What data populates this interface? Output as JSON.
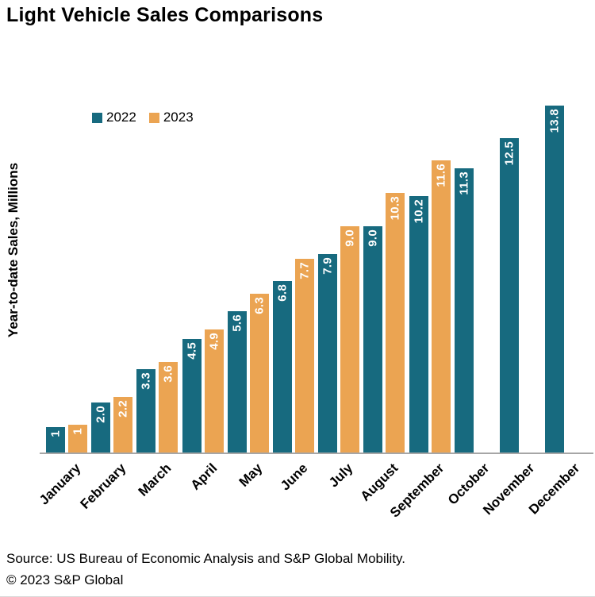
{
  "title": "Light Vehicle Sales Comparisons",
  "ylabel": "Year-to-date Sales, Millions",
  "source": "Source: US Bureau of Economic Analysis and S&P Global Mobility.",
  "copyright": "© 2023 S&P Global",
  "chart_data": {
    "type": "bar",
    "title": "Light Vehicle Sales Comparisons",
    "xlabel": "",
    "ylabel": "Year-to-date Sales, Millions",
    "ylim": [
      0,
      14
    ],
    "grid": false,
    "legend_position": "top-left-inside",
    "categories": [
      "January",
      "February",
      "March",
      "April",
      "May",
      "June",
      "July",
      "August",
      "September",
      "October",
      "November",
      "December"
    ],
    "series": [
      {
        "name": "2022",
        "color": "#176a7f",
        "values": [
          1.0,
          2.0,
          3.3,
          4.5,
          5.6,
          6.8,
          7.9,
          9.0,
          10.2,
          11.3,
          12.5,
          13.8
        ],
        "labels": [
          "1",
          "2.0",
          "3.3",
          "4.5",
          "5.6",
          "6.8",
          "7.9",
          "9.0",
          "10.2",
          "11.3",
          "12.5",
          "13.8"
        ]
      },
      {
        "name": "2023",
        "color": "#eba452",
        "values": [
          1.1,
          2.2,
          3.6,
          4.9,
          6.3,
          7.7,
          9.0,
          10.3,
          11.6,
          null,
          null,
          null
        ],
        "labels": [
          "1",
          "2.2",
          "3.6",
          "4.9",
          "6.3",
          "7.7",
          "9.0",
          "10.3",
          "11.6",
          null,
          null,
          null
        ]
      }
    ]
  }
}
